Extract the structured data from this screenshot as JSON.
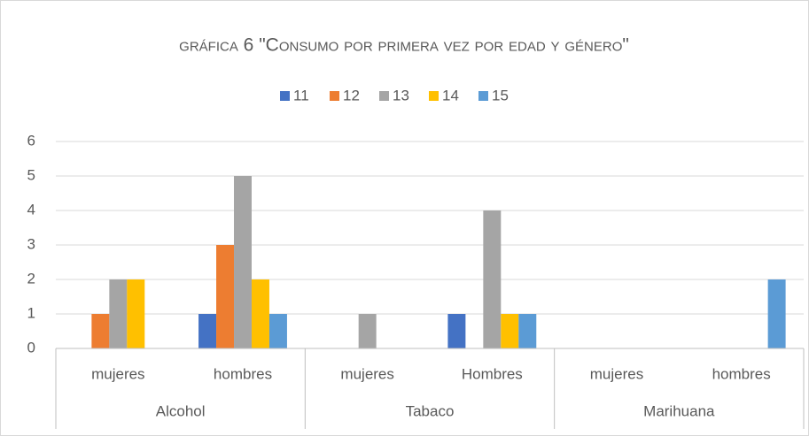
{
  "chart_data": {
    "type": "bar",
    "title": "gráfica 6 \"Consumo por primera vez por edad y género\"",
    "categories": [
      "mujeres",
      "hombres",
      "mujeres",
      "Hombres",
      "mujeres",
      "hombres"
    ],
    "groups": [
      "Alcohol",
      "Tabaco",
      "Marihuana"
    ],
    "series": [
      {
        "name": "11",
        "color": "#4472c4",
        "values": [
          0,
          1,
          0,
          1,
          0,
          0
        ]
      },
      {
        "name": "12",
        "color": "#ed7d31",
        "values": [
          1,
          3,
          0,
          0,
          0,
          0
        ]
      },
      {
        "name": "13",
        "color": "#a5a5a5",
        "values": [
          2,
          5,
          1,
          4,
          0,
          0
        ]
      },
      {
        "name": "14",
        "color": "#ffc000",
        "values": [
          2,
          2,
          0,
          1,
          0,
          0
        ]
      },
      {
        "name": "15",
        "color": "#5b9bd5",
        "values": [
          0,
          1,
          0,
          1,
          0,
          2
        ]
      }
    ],
    "ylim": [
      0,
      6
    ],
    "yticks": [
      0,
      1,
      2,
      3,
      4,
      5,
      6
    ],
    "grid": true,
    "legend": "top"
  }
}
